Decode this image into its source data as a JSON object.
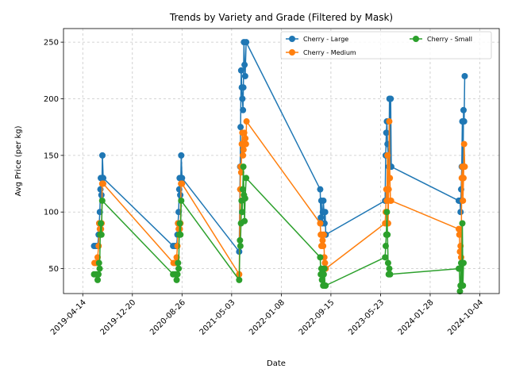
{
  "chart_data": {
    "type": "line",
    "title": "Trends by Variety and Grade (Filtered by Mask)",
    "xlabel": "Date",
    "ylabel": "Avg Price (per kg)",
    "grid": true,
    "legend_position": "top-right",
    "legend_columns": 2,
    "x_type": "date",
    "xlim": [
      "2019-01-07",
      "2025-01-10"
    ],
    "ylim": [
      28,
      262
    ],
    "x_ticks": [
      "2019-04-14",
      "2019-12-20",
      "2020-08-26",
      "2021-05-03",
      "2022-01-08",
      "2022-09-15",
      "2023-05-23",
      "2024-01-28",
      "2024-10-04"
    ],
    "y_ticks": [
      50,
      100,
      150,
      200,
      250
    ],
    "series": [
      {
        "name": "Cherry - Large",
        "color": "#1f77b4",
        "points": [
          [
            "2019-06-10",
            70
          ],
          [
            "2019-06-20",
            70
          ],
          [
            "2019-06-28",
            70
          ],
          [
            "2019-07-03",
            80
          ],
          [
            "2019-07-06",
            90
          ],
          [
            "2019-07-09",
            100
          ],
          [
            "2019-07-12",
            120
          ],
          [
            "2019-07-14",
            130
          ],
          [
            "2019-07-17",
            115
          ],
          [
            "2019-07-20",
            130
          ],
          [
            "2019-07-22",
            150
          ],
          [
            "2019-07-26",
            130
          ],
          [
            "2020-07-12",
            70
          ],
          [
            "2020-07-22",
            70
          ],
          [
            "2020-07-30",
            70
          ],
          [
            "2020-08-03",
            80
          ],
          [
            "2020-08-06",
            90
          ],
          [
            "2020-08-09",
            100
          ],
          [
            "2020-08-12",
            120
          ],
          [
            "2020-08-14",
            130
          ],
          [
            "2020-08-17",
            115
          ],
          [
            "2020-08-20",
            130
          ],
          [
            "2020-08-22",
            150
          ],
          [
            "2020-08-26",
            130
          ],
          [
            "2021-06-10",
            65
          ],
          [
            "2021-06-15",
            140
          ],
          [
            "2021-06-17",
            175
          ],
          [
            "2021-06-20",
            225
          ],
          [
            "2021-06-23",
            210
          ],
          [
            "2021-06-26",
            200
          ],
          [
            "2021-06-29",
            190
          ],
          [
            "2021-07-01",
            210
          ],
          [
            "2021-07-04",
            250
          ],
          [
            "2021-07-07",
            230
          ],
          [
            "2021-07-10",
            220
          ],
          [
            "2021-07-15",
            250
          ],
          [
            "2022-07-23",
            120
          ],
          [
            "2022-07-26",
            95
          ],
          [
            "2022-07-29",
            110
          ],
          [
            "2022-08-02",
            90
          ],
          [
            "2022-08-05",
            100
          ],
          [
            "2022-08-08",
            110
          ],
          [
            "2022-08-11",
            100
          ],
          [
            "2022-08-14",
            90
          ],
          [
            "2022-08-17",
            100
          ],
          [
            "2022-08-20",
            80
          ],
          [
            "2023-06-15",
            110
          ],
          [
            "2023-06-18",
            150
          ],
          [
            "2023-06-21",
            170
          ],
          [
            "2023-06-24",
            180
          ],
          [
            "2023-06-27",
            160
          ],
          [
            "2023-07-01",
            150
          ],
          [
            "2023-07-04",
            140
          ],
          [
            "2023-07-07",
            200
          ],
          [
            "2023-07-10",
            140
          ],
          [
            "2023-07-13",
            200
          ],
          [
            "2023-07-16",
            140
          ],
          [
            "2024-06-20",
            110
          ],
          [
            "2024-06-23",
            110
          ],
          [
            "2024-06-26",
            110
          ],
          [
            "2024-06-29",
            100
          ],
          [
            "2024-07-02",
            120
          ],
          [
            "2024-07-05",
            140
          ],
          [
            "2024-07-08",
            180
          ],
          [
            "2024-07-11",
            130
          ],
          [
            "2024-07-14",
            190
          ],
          [
            "2024-07-17",
            180
          ],
          [
            "2024-07-20",
            220
          ]
        ]
      },
      {
        "name": "Cherry - Medium",
        "color": "#ff7f0e",
        "points": [
          [
            "2019-06-12",
            55
          ],
          [
            "2019-06-22",
            55
          ],
          [
            "2019-06-28",
            60
          ],
          [
            "2019-07-03",
            70
          ],
          [
            "2019-07-06",
            90
          ],
          [
            "2019-07-09",
            85
          ],
          [
            "2019-07-12",
            90
          ],
          [
            "2019-07-15",
            85
          ],
          [
            "2019-07-18",
            90
          ],
          [
            "2019-07-21",
            125
          ],
          [
            "2019-07-26",
            125
          ],
          [
            "2020-07-14",
            55
          ],
          [
            "2020-07-24",
            55
          ],
          [
            "2020-07-30",
            60
          ],
          [
            "2020-08-03",
            70
          ],
          [
            "2020-08-06",
            90
          ],
          [
            "2020-08-09",
            85
          ],
          [
            "2020-08-12",
            90
          ],
          [
            "2020-08-15",
            85
          ],
          [
            "2020-08-18",
            90
          ],
          [
            "2020-08-21",
            125
          ],
          [
            "2020-08-26",
            125
          ],
          [
            "2021-06-10",
            45
          ],
          [
            "2021-06-15",
            120
          ],
          [
            "2021-06-17",
            140
          ],
          [
            "2021-06-20",
            135
          ],
          [
            "2021-06-23",
            160
          ],
          [
            "2021-06-26",
            170
          ],
          [
            "2021-06-29",
            150
          ],
          [
            "2021-07-02",
            155
          ],
          [
            "2021-07-05",
            170
          ],
          [
            "2021-07-08",
            160
          ],
          [
            "2021-07-11",
            165
          ],
          [
            "2021-07-14",
            160
          ],
          [
            "2021-07-17",
            180
          ],
          [
            "2022-07-23",
            90
          ],
          [
            "2022-07-26",
            80
          ],
          [
            "2022-07-29",
            70
          ],
          [
            "2022-08-01",
            80
          ],
          [
            "2022-08-04",
            75
          ],
          [
            "2022-08-07",
            70
          ],
          [
            "2022-08-10",
            80
          ],
          [
            "2022-08-13",
            60
          ],
          [
            "2022-08-16",
            55
          ],
          [
            "2022-08-20",
            50
          ],
          [
            "2023-06-15",
            90
          ],
          [
            "2023-06-18",
            100
          ],
          [
            "2023-06-21",
            120
          ],
          [
            "2023-06-24",
            110
          ],
          [
            "2023-06-27",
            150
          ],
          [
            "2023-06-30",
            90
          ],
          [
            "2023-07-03",
            120
          ],
          [
            "2023-07-06",
            180
          ],
          [
            "2023-07-09",
            130
          ],
          [
            "2023-07-12",
            110
          ],
          [
            "2023-07-15",
            110
          ],
          [
            "2024-06-20",
            85
          ],
          [
            "2024-06-23",
            80
          ],
          [
            "2024-06-26",
            65
          ],
          [
            "2024-06-29",
            70
          ],
          [
            "2024-07-02",
            60
          ],
          [
            "2024-07-05",
            130
          ],
          [
            "2024-07-08",
            140
          ],
          [
            "2024-07-11",
            110
          ],
          [
            "2024-07-14",
            130
          ],
          [
            "2024-07-17",
            160
          ],
          [
            "2024-07-20",
            140
          ]
        ]
      },
      {
        "name": "Cherry - Small",
        "color": "#2ca02c",
        "points": [
          [
            "2019-06-10",
            45
          ],
          [
            "2019-06-20",
            45
          ],
          [
            "2019-06-28",
            40
          ],
          [
            "2019-07-02",
            45
          ],
          [
            "2019-07-05",
            55
          ],
          [
            "2019-07-08",
            50
          ],
          [
            "2019-07-11",
            80
          ],
          [
            "2019-07-14",
            90
          ],
          [
            "2019-07-17",
            80
          ],
          [
            "2019-07-21",
            110
          ],
          [
            "2020-07-12",
            45
          ],
          [
            "2020-07-22",
            45
          ],
          [
            "2020-07-30",
            40
          ],
          [
            "2020-08-03",
            45
          ],
          [
            "2020-08-06",
            55
          ],
          [
            "2020-08-09",
            50
          ],
          [
            "2020-08-12",
            80
          ],
          [
            "2020-08-15",
            90
          ],
          [
            "2020-08-18",
            80
          ],
          [
            "2020-08-22",
            110
          ],
          [
            "2021-06-10",
            40
          ],
          [
            "2021-06-14",
            75
          ],
          [
            "2021-06-16",
            70
          ],
          [
            "2021-06-19",
            90
          ],
          [
            "2021-06-22",
            110
          ],
          [
            "2021-06-25",
            100
          ],
          [
            "2021-06-28",
            120
          ],
          [
            "2021-07-01",
            140
          ],
          [
            "2021-07-04",
            115
          ],
          [
            "2021-07-07",
            92
          ],
          [
            "2021-07-10",
            112
          ],
          [
            "2021-07-15",
            130
          ],
          [
            "2022-07-23",
            60
          ],
          [
            "2022-07-26",
            45
          ],
          [
            "2022-07-29",
            50
          ],
          [
            "2022-08-01",
            40
          ],
          [
            "2022-08-04",
            45
          ],
          [
            "2022-08-07",
            35
          ],
          [
            "2022-08-10",
            45
          ],
          [
            "2022-08-13",
            50
          ],
          [
            "2022-08-16",
            35
          ],
          [
            "2022-08-19",
            35
          ],
          [
            "2023-06-15",
            60
          ],
          [
            "2023-06-18",
            70
          ],
          [
            "2023-06-21",
            80
          ],
          [
            "2023-06-24",
            100
          ],
          [
            "2023-06-27",
            80
          ],
          [
            "2023-06-30",
            55
          ],
          [
            "2023-07-03",
            45
          ],
          [
            "2023-07-06",
            50
          ],
          [
            "2023-07-10",
            45
          ],
          [
            "2024-06-20",
            50
          ],
          [
            "2024-06-23",
            50
          ],
          [
            "2024-06-26",
            30
          ],
          [
            "2024-06-29",
            35
          ],
          [
            "2024-07-02",
            55
          ],
          [
            "2024-07-05",
            35
          ],
          [
            "2024-07-08",
            90
          ],
          [
            "2024-07-11",
            35
          ],
          [
            "2024-07-14",
            55
          ]
        ]
      }
    ]
  }
}
